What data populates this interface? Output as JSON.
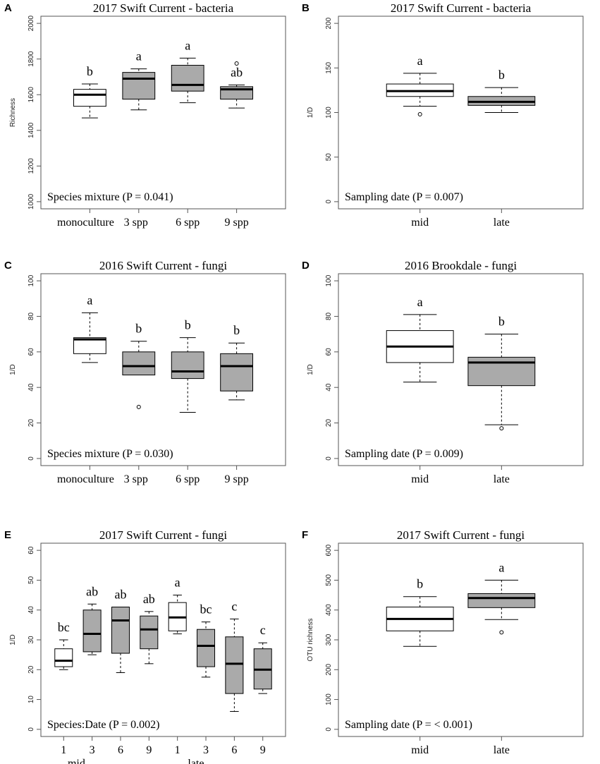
{
  "chart_data": [
    {
      "id": "A",
      "type": "boxplot",
      "title": "2017 Swift Current - bacteria",
      "ylabel": "Richness",
      "ylim": [
        1000,
        2000
      ],
      "yticks": [
        1000,
        1200,
        1400,
        1600,
        1800,
        2000
      ],
      "categories": [
        "monoculture",
        "3 spp",
        "6 spp",
        "9 spp"
      ],
      "boxes": [
        {
          "fill": "#ffffff",
          "wlo": 1470,
          "q1": 1535,
          "med": 1600,
          "q3": 1630,
          "whi": 1660,
          "outliers": [],
          "letter": "b"
        },
        {
          "fill": "#aaaaaa",
          "wlo": 1515,
          "q1": 1575,
          "med": 1690,
          "q3": 1725,
          "whi": 1745,
          "outliers": [],
          "letter": "a"
        },
        {
          "fill": "#aaaaaa",
          "wlo": 1555,
          "q1": 1620,
          "med": 1655,
          "q3": 1765,
          "whi": 1805,
          "outliers": [],
          "letter": "a"
        },
        {
          "fill": "#aaaaaa",
          "wlo": 1525,
          "q1": 1575,
          "med": 1630,
          "q3": 1645,
          "whi": 1655,
          "outliers": [
            1775
          ],
          "letter": "ab"
        }
      ],
      "annotation": "Species mixture (P = 0.041)"
    },
    {
      "id": "B",
      "type": "boxplot",
      "title": "2017 Swift Current - bacteria",
      "ylabel": "1/D",
      "ylim": [
        0,
        200
      ],
      "yticks": [
        0,
        50,
        100,
        150,
        200
      ],
      "categories": [
        "mid",
        "late"
      ],
      "boxes": [
        {
          "fill": "#ffffff",
          "wlo": 107,
          "q1": 118,
          "med": 124,
          "q3": 132,
          "whi": 144,
          "outliers": [
            98
          ],
          "letter": "a"
        },
        {
          "fill": "#aaaaaa",
          "wlo": 100,
          "q1": 108,
          "med": 112,
          "q3": 118,
          "whi": 128,
          "outliers": [],
          "letter": "b"
        }
      ],
      "annotation": "Sampling date (P = 0.007)"
    },
    {
      "id": "C",
      "type": "boxplot",
      "title": "2016 Swift Current - fungi",
      "ylabel": "1/D",
      "ylim": [
        0,
        100
      ],
      "yticks": [
        0,
        20,
        40,
        60,
        80,
        100
      ],
      "categories": [
        "monoculture",
        "3 spp",
        "6 spp",
        "9 spp"
      ],
      "boxes": [
        {
          "fill": "#ffffff",
          "wlo": 54,
          "q1": 59,
          "med": 67,
          "q3": 68,
          "whi": 82,
          "outliers": [],
          "letter": "a"
        },
        {
          "fill": "#aaaaaa",
          "wlo": 47,
          "q1": 47,
          "med": 52,
          "q3": 60,
          "whi": 66,
          "outliers": [
            29
          ],
          "letter": "b"
        },
        {
          "fill": "#aaaaaa",
          "wlo": 26,
          "q1": 45,
          "med": 49,
          "q3": 60,
          "whi": 68,
          "outliers": [],
          "letter": "b"
        },
        {
          "fill": "#aaaaaa",
          "wlo": 33,
          "q1": 38,
          "med": 52,
          "q3": 59,
          "whi": 65,
          "outliers": [],
          "letter": "b"
        }
      ],
      "annotation": "Species mixture (P = 0.030)"
    },
    {
      "id": "D",
      "type": "boxplot",
      "title": "2016 Brookdale - fungi",
      "ylabel": "1/D",
      "ylim": [
        0,
        100
      ],
      "yticks": [
        0,
        20,
        40,
        60,
        80,
        100
      ],
      "categories": [
        "mid",
        "late"
      ],
      "boxes": [
        {
          "fill": "#ffffff",
          "wlo": 43,
          "q1": 54,
          "med": 63,
          "q3": 72,
          "whi": 81,
          "outliers": [],
          "letter": "a"
        },
        {
          "fill": "#aaaaaa",
          "wlo": 19,
          "q1": 41,
          "med": 54,
          "q3": 57,
          "whi": 70,
          "outliers": [
            17
          ],
          "letter": "b"
        }
      ],
      "annotation": "Sampling date (P = 0.009)"
    },
    {
      "id": "E",
      "type": "boxplot",
      "title": "2017 Swift Current - fungi",
      "ylabel": "1/D",
      "ylim": [
        0,
        60
      ],
      "yticks": [
        0,
        10,
        20,
        30,
        40,
        50,
        60
      ],
      "categories": [
        "1",
        "3",
        "6",
        "9",
        "1",
        "3",
        "6",
        "9"
      ],
      "groups": [
        {
          "label": "mid",
          "from": 0,
          "to": 3
        },
        {
          "label": "late",
          "from": 4,
          "to": 7
        }
      ],
      "boxes": [
        {
          "fill": "#ffffff",
          "wlo": 20,
          "q1": 21,
          "med": 23,
          "q3": 27,
          "whi": 30,
          "outliers": [],
          "letter": "bc"
        },
        {
          "fill": "#aaaaaa",
          "wlo": 25,
          "q1": 26,
          "med": 32,
          "q3": 40,
          "whi": 42,
          "outliers": [],
          "letter": "ab"
        },
        {
          "fill": "#aaaaaa",
          "wlo": 19,
          "q1": 25.5,
          "med": 36.5,
          "q3": 41,
          "whi": 41,
          "outliers": [],
          "letter": "ab"
        },
        {
          "fill": "#aaaaaa",
          "wlo": 22,
          "q1": 27,
          "med": 33.5,
          "q3": 38,
          "whi": 39.5,
          "outliers": [],
          "letter": "ab"
        },
        {
          "fill": "#ffffff",
          "wlo": 32,
          "q1": 33,
          "med": 37.5,
          "q3": 42.5,
          "whi": 45,
          "outliers": [],
          "letter": "a"
        },
        {
          "fill": "#aaaaaa",
          "wlo": 17.5,
          "q1": 21,
          "med": 28,
          "q3": 33.5,
          "whi": 36,
          "outliers": [],
          "letter": "bc"
        },
        {
          "fill": "#aaaaaa",
          "wlo": 6,
          "q1": 12,
          "med": 22,
          "q3": 31,
          "whi": 37,
          "outliers": [],
          "letter": "c"
        },
        {
          "fill": "#aaaaaa",
          "wlo": 12,
          "q1": 13.5,
          "med": 20,
          "q3": 27,
          "whi": 29,
          "outliers": [],
          "letter": "c"
        }
      ],
      "annotation": "Species:Date (P = 0.002)"
    },
    {
      "id": "F",
      "type": "boxplot",
      "title": "2017 Swift Current - fungi",
      "ylabel": "OTU richness",
      "ylim": [
        0,
        600
      ],
      "yticks": [
        0,
        100,
        200,
        300,
        400,
        500,
        600
      ],
      "categories": [
        "mid",
        "late"
      ],
      "boxes": [
        {
          "fill": "#ffffff",
          "wlo": 278,
          "q1": 330,
          "med": 370,
          "q3": 410,
          "whi": 445,
          "outliers": [],
          "letter": "b"
        },
        {
          "fill": "#aaaaaa",
          "wlo": 368,
          "q1": 408,
          "med": 440,
          "q3": 455,
          "whi": 500,
          "outliers": [
            325
          ],
          "letter": "a"
        }
      ],
      "annotation": "Sampling date (P = < 0.001)"
    }
  ]
}
